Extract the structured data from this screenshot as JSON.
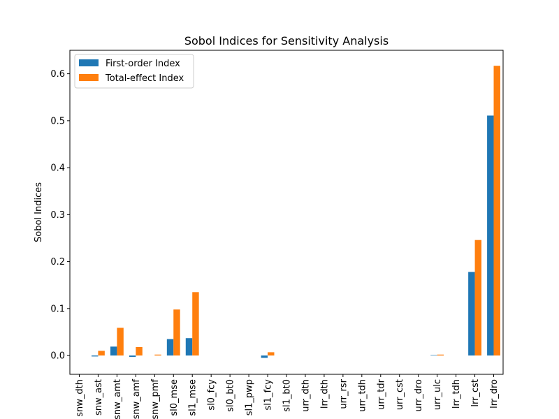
{
  "chart_data": {
    "type": "bar",
    "title": "Sobol Indices for Sensitivity Analysis",
    "xlabel": "",
    "ylabel": "Sobol Indices",
    "ylim": [
      -0.04,
      0.65
    ],
    "yticks": [
      "0.0",
      "0.1",
      "0.2",
      "0.3",
      "0.4",
      "0.5",
      "0.6"
    ],
    "ytick_values": [
      0.0,
      0.1,
      0.2,
      0.3,
      0.4,
      0.5,
      0.6
    ],
    "legend_position": "top-left",
    "grid": false,
    "categories": [
      "snw_dth",
      "snw_ast",
      "snw_amt",
      "snw_amf",
      "snw_pmf",
      "sl0_mse",
      "sl1_mse",
      "sl0_fcy",
      "sl0_bt0",
      "sl1_pwp",
      "sl1_fcy",
      "sl1_bt0",
      "urr_dth",
      "lrr_dth",
      "urr_rsr",
      "urr_tdh",
      "urr_tdr",
      "urr_cst",
      "urr_dro",
      "urr_ulc",
      "lrr_tdh",
      "lrr_cst",
      "lrr_dro"
    ],
    "series": [
      {
        "name": "First-order Index",
        "color": "#1f77b4",
        "values": [
          0.0,
          -0.002,
          0.019,
          -0.003,
          0.0,
          0.035,
          0.037,
          0.0,
          0.0,
          0.0,
          -0.005,
          0.0,
          0.0,
          0.0,
          0.0,
          0.0,
          0.0,
          0.0,
          0.0,
          0.001,
          0.0,
          0.178,
          0.511
        ]
      },
      {
        "name": "Total-effect Index",
        "color": "#ff7f0e",
        "values": [
          0.0,
          0.01,
          0.059,
          0.018,
          0.002,
          0.098,
          0.135,
          0.0,
          0.0,
          0.0,
          0.007,
          0.0,
          0.0,
          0.0,
          0.0,
          0.0,
          0.0,
          0.0,
          0.0,
          0.002,
          0.0,
          0.246,
          0.617
        ]
      }
    ]
  }
}
